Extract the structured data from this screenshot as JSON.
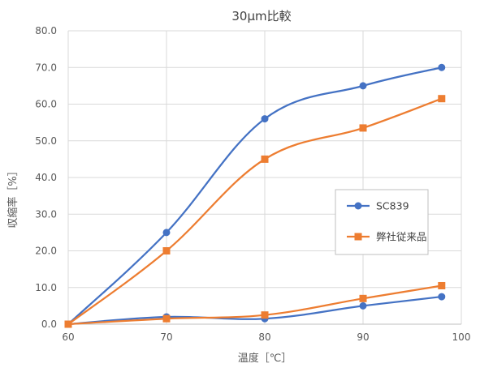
{
  "chart_data": {
    "type": "line",
    "title": "30μm比較",
    "xlabel": "温度［℃］",
    "ylabel": "収縮率［%］",
    "xlim": [
      60,
      100
    ],
    "ylim": [
      0,
      80
    ],
    "x_ticks": [
      "60",
      "70",
      "80",
      "90",
      "100"
    ],
    "y_ticks": [
      "0.0",
      "10.0",
      "20.0",
      "30.0",
      "40.0",
      "50.0",
      "60.0",
      "70.0",
      "80.0"
    ],
    "grid": true,
    "smooth": true,
    "legend_position": "right",
    "series": [
      {
        "name": "SC839",
        "color": "#4472C4",
        "marker": "circle",
        "lines": [
          {
            "x": [
              60,
              70,
              80,
              90,
              98
            ],
            "y": [
              0.0,
              25.0,
              56.0,
              65.0,
              70.0
            ]
          },
          {
            "x": [
              60,
              70,
              80,
              90,
              98
            ],
            "y": [
              0.0,
              2.0,
              1.5,
              5.0,
              7.5
            ]
          }
        ]
      },
      {
        "name": "弊社従来品",
        "color": "#ED7D31",
        "marker": "square",
        "lines": [
          {
            "x": [
              60,
              70,
              80,
              90,
              98
            ],
            "y": [
              0.0,
              20.0,
              45.0,
              53.5,
              61.5
            ]
          },
          {
            "x": [
              60,
              70,
              80,
              90,
              98
            ],
            "y": [
              0.0,
              1.5,
              2.5,
              7.0,
              10.5
            ]
          }
        ]
      }
    ]
  }
}
